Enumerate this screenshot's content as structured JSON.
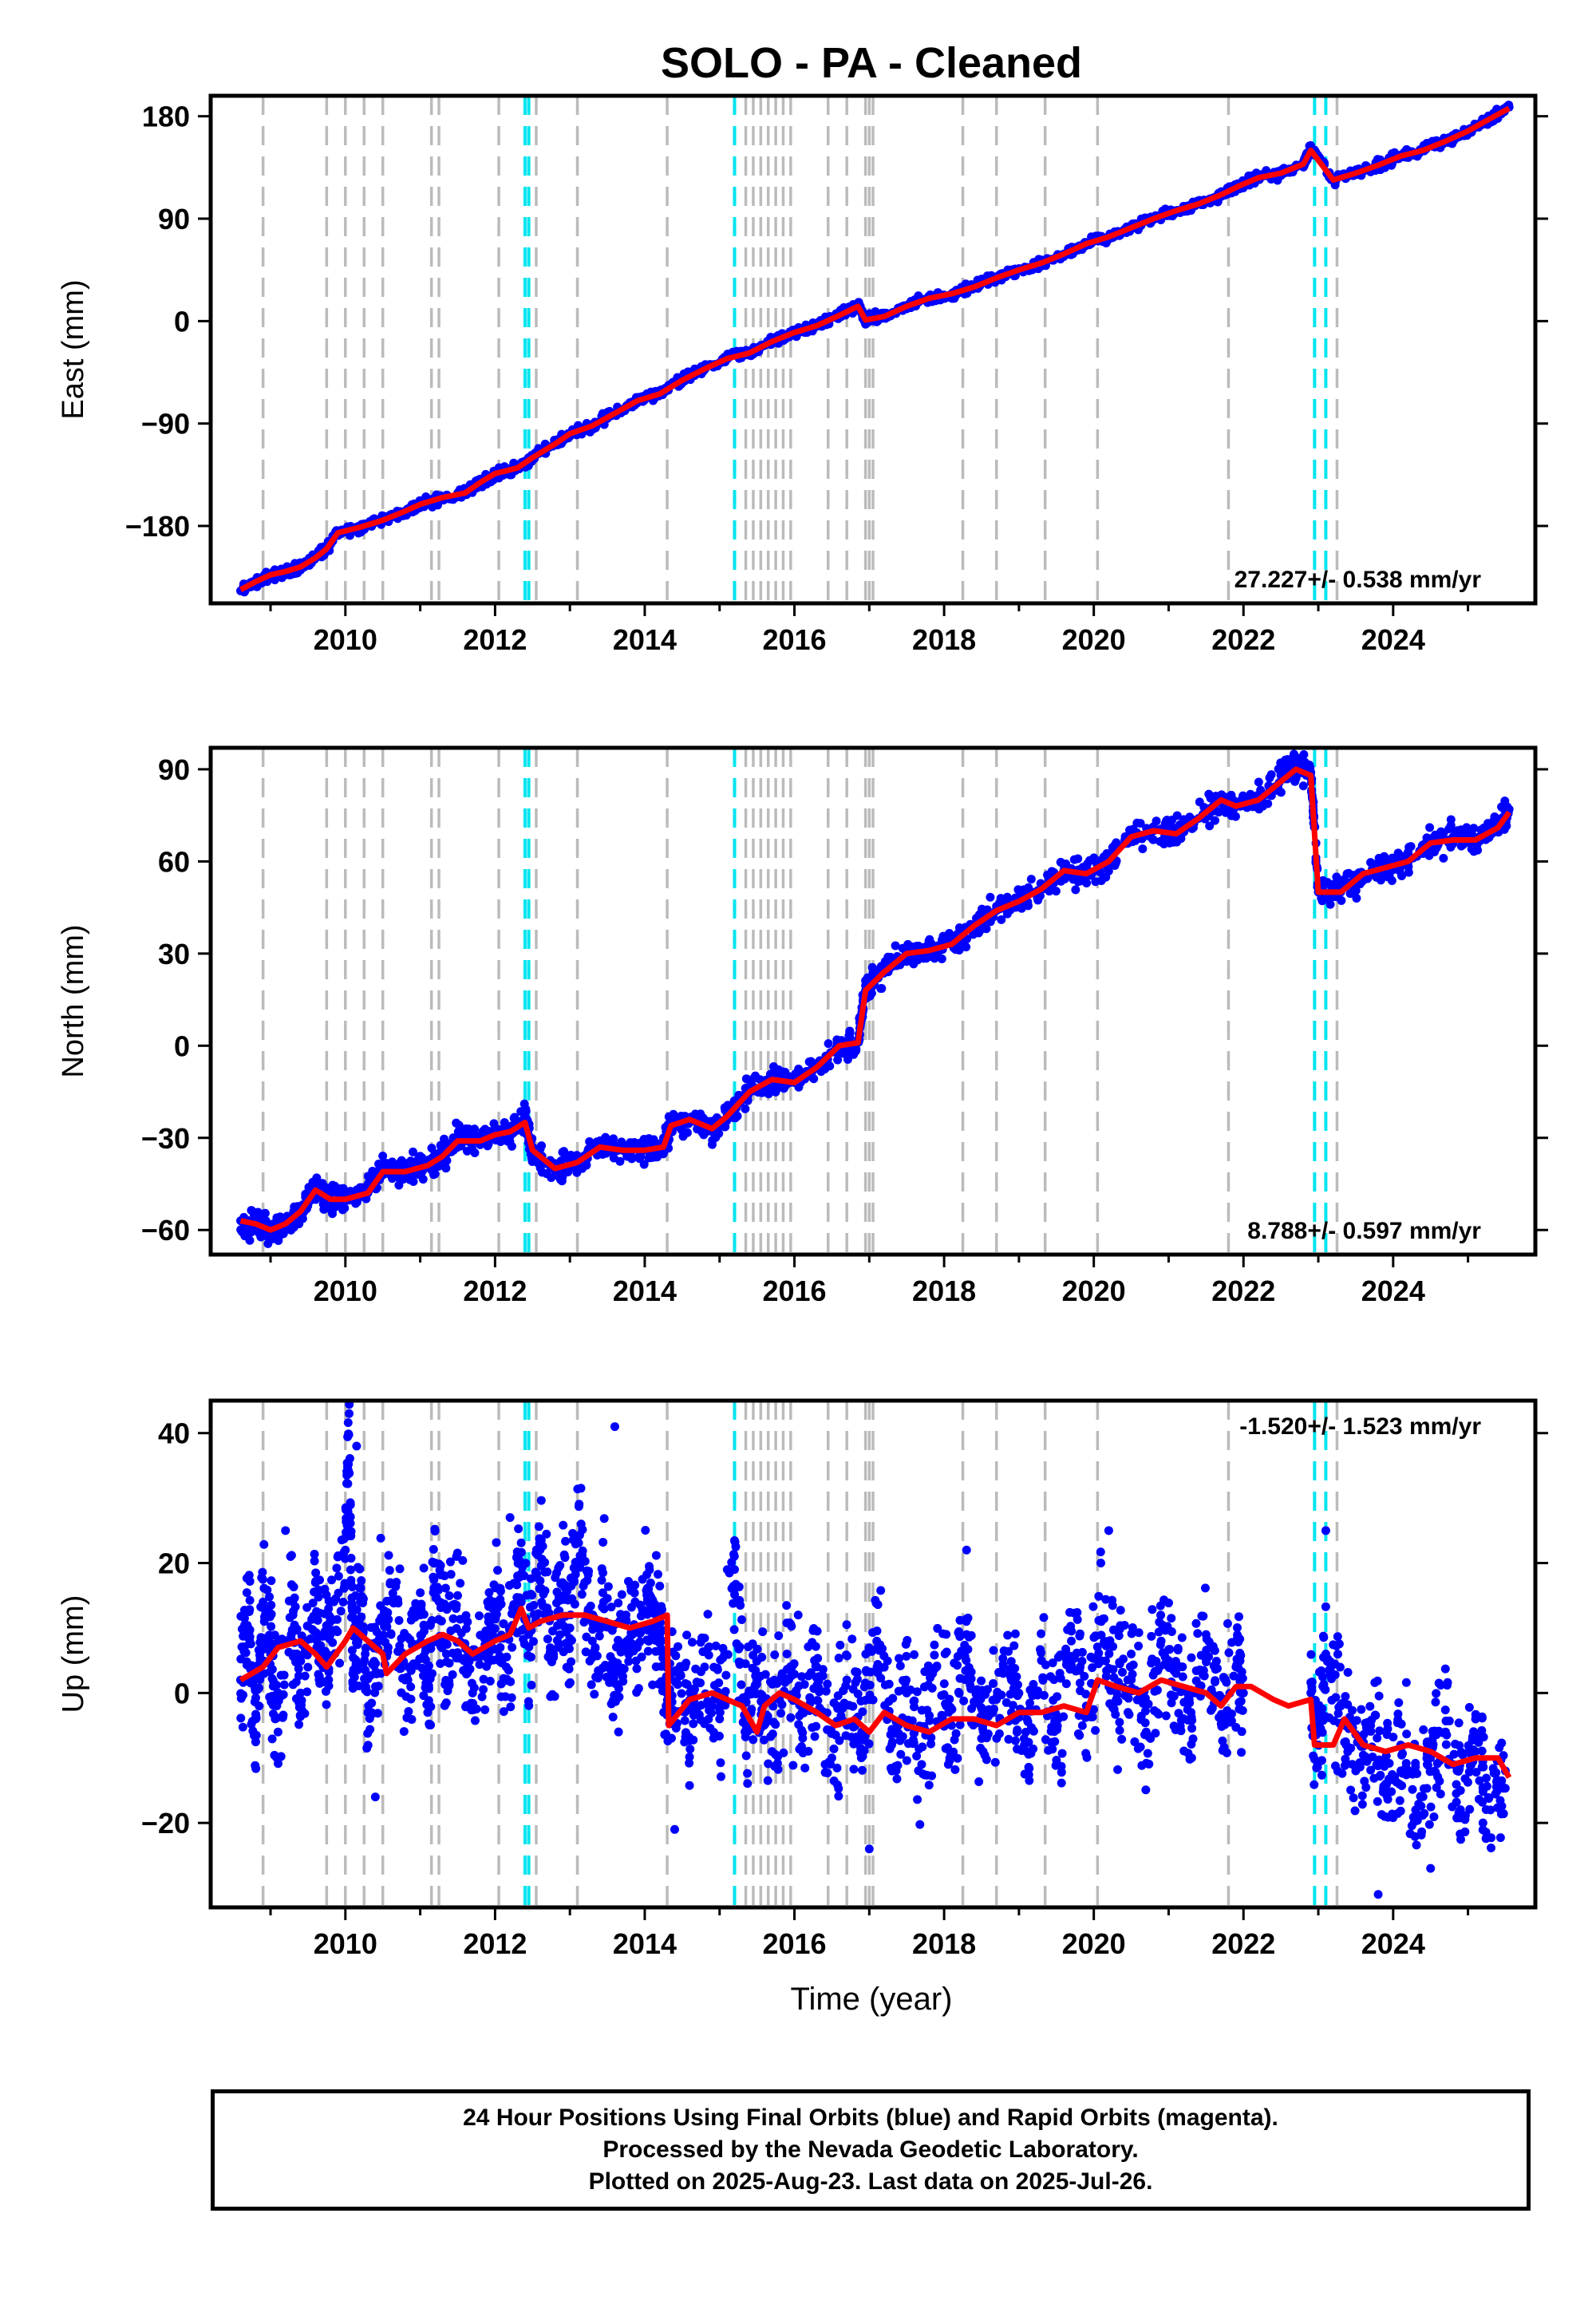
{
  "title": "SOLO  - PA - Cleaned",
  "x_axis_label": "Time (year)",
  "x_ticks": [
    "2010",
    "2012",
    "2014",
    "2016",
    "2018",
    "2020",
    "2022",
    "2024"
  ],
  "colors": {
    "points": "#0000ff",
    "model": "#ff0000",
    "event_gray": "#bbbbbb",
    "event_cyan": "#00e5ee"
  },
  "events": {
    "gray": [
      2008.9,
      2009.75,
      2010.0,
      2010.25,
      2010.5,
      2011.15,
      2011.25,
      2012.05,
      2012.55,
      2013.1,
      2014.3,
      2015.35,
      2015.45,
      2015.55,
      2015.65,
      2015.75,
      2015.85,
      2015.95,
      2016.45,
      2016.7,
      2016.95,
      2017.0,
      2017.05,
      2018.25,
      2018.7,
      2019.35,
      2020.05,
      2021.8,
      2023.25
    ],
    "cyan": [
      2012.4,
      2012.45,
      2015.2,
      2022.95,
      2023.1
    ]
  },
  "info_lines": [
    "24 Hour Positions Using Final Orbits (blue) and Rapid Orbits (magenta).",
    "Processed by the Nevada Geodetic Laboratory.",
    "Plotted on 2025-Aug-23. Last data on 2025-Jul-26."
  ],
  "chart_data": [
    {
      "type": "scatter",
      "ylabel": "East (mm)",
      "rate_label": "27.227+/- 0.538 mm/yr",
      "yticks": [
        -180,
        -90,
        0,
        90,
        180
      ],
      "xlim": [
        2008.2,
        2025.9
      ],
      "ylim": [
        -248,
        198
      ],
      "grid": false,
      "series": [
        {
          "marker": "points",
          "x": [
            2008.6,
            2008.8,
            2009.0,
            2009.2,
            2009.4,
            2009.6,
            2009.75,
            2009.9,
            2010.2,
            2010.5,
            2010.8,
            2011.0,
            2011.3,
            2011.6,
            2011.8,
            2012.0,
            2012.3,
            2012.5,
            2012.8,
            2013.0,
            2013.3,
            2013.6,
            2013.9,
            2014.2,
            2014.5,
            2014.8,
            2015.1,
            2015.4,
            2015.7,
            2016.0,
            2016.3,
            2016.6,
            2016.85,
            2016.95,
            2017.2,
            2017.5,
            2017.8,
            2018.1,
            2018.4,
            2018.7,
            2019.0,
            2019.3,
            2019.6,
            2019.9,
            2020.2,
            2020.5,
            2020.8,
            2021.1,
            2021.4,
            2021.7,
            2021.95,
            2022.2,
            2022.5,
            2022.8,
            2022.9,
            2023.2,
            2023.5,
            2023.8,
            2024.1,
            2024.4,
            2024.7,
            2025.0,
            2025.3,
            2025.55
          ],
          "y": [
            -237,
            -229,
            -224,
            -220,
            -216,
            -208,
            -200,
            -185,
            -181,
            -175,
            -167,
            -161,
            -155,
            -151,
            -142,
            -134,
            -129,
            -120,
            -108,
            -99,
            -92,
            -81,
            -70,
            -64,
            -52,
            -42,
            -33,
            -28,
            -18,
            -10,
            -4,
            5,
            14,
            1,
            4,
            13,
            20,
            24,
            30,
            38,
            45,
            51,
            59,
            68,
            74,
            82,
            90,
            97,
            103,
            111,
            119,
            126,
            130,
            138,
            153,
            124,
            130,
            137,
            145,
            150,
            158,
            167,
            178,
            188
          ]
        },
        {
          "marker": "model",
          "x": [
            2008.6,
            2008.8,
            2009.0,
            2009.2,
            2009.4,
            2009.6,
            2009.75,
            2009.9,
            2010.2,
            2010.5,
            2010.8,
            2011.0,
            2011.3,
            2011.6,
            2011.8,
            2012.0,
            2012.3,
            2012.5,
            2012.8,
            2013.0,
            2013.3,
            2013.6,
            2013.9,
            2014.2,
            2014.5,
            2014.8,
            2015.1,
            2015.4,
            2015.7,
            2016.0,
            2016.3,
            2016.6,
            2016.85,
            2016.95,
            2017.2,
            2017.5,
            2017.8,
            2018.1,
            2018.4,
            2018.7,
            2019.0,
            2019.3,
            2019.6,
            2019.9,
            2020.2,
            2020.5,
            2020.8,
            2021.1,
            2021.4,
            2021.7,
            2021.95,
            2022.2,
            2022.5,
            2022.8,
            2022.9,
            2023.2,
            2023.5,
            2023.8,
            2024.1,
            2024.4,
            2024.7,
            2025.0,
            2025.3,
            2025.55
          ],
          "y": [
            -236,
            -229,
            -223,
            -220,
            -216,
            -208,
            -200,
            -186,
            -181,
            -175,
            -167,
            -161,
            -155,
            -151,
            -142,
            -134,
            -129,
            -120,
            -108,
            -99,
            -92,
            -81,
            -70,
            -64,
            -52,
            -42,
            -33,
            -28,
            -18,
            -10,
            -4,
            5,
            13,
            1,
            4,
            13,
            20,
            24,
            30,
            38,
            45,
            51,
            59,
            68,
            74,
            82,
            90,
            97,
            103,
            111,
            119,
            126,
            130,
            138,
            150,
            124,
            130,
            137,
            145,
            150,
            158,
            167,
            178,
            187
          ]
        }
      ]
    },
    {
      "type": "scatter",
      "ylabel": "North (mm)",
      "rate_label": "8.788+/- 0.597 mm/yr",
      "yticks": [
        -60,
        -30,
        0,
        30,
        60,
        90
      ],
      "xlim": [
        2008.2,
        2025.9
      ],
      "ylim": [
        -68,
        97
      ],
      "grid": false,
      "series": [
        {
          "marker": "points",
          "x": [
            2008.6,
            2008.8,
            2009.0,
            2009.2,
            2009.4,
            2009.6,
            2009.8,
            2010.0,
            2010.3,
            2010.5,
            2010.8,
            2011.1,
            2011.3,
            2011.5,
            2011.8,
            2012.0,
            2012.2,
            2012.4,
            2012.5,
            2012.8,
            2013.1,
            2013.4,
            2013.7,
            2014.0,
            2014.25,
            2014.35,
            2014.6,
            2014.9,
            2015.1,
            2015.4,
            2015.7,
            2016.0,
            2016.3,
            2016.6,
            2016.85,
            2016.95,
            2017.2,
            2017.5,
            2017.8,
            2018.1,
            2018.4,
            2018.7,
            2019.0,
            2019.3,
            2019.6,
            2019.9,
            2020.2,
            2020.5,
            2020.8,
            2021.1,
            2021.4,
            2021.7,
            2021.9,
            2022.2,
            2022.5,
            2022.7,
            2022.9,
            2023.0,
            2023.3,
            2023.6,
            2023.9,
            2024.2,
            2024.5,
            2024.8,
            2025.1,
            2025.4,
            2025.55
          ],
          "y": [
            -57,
            -58,
            -60,
            -58,
            -54,
            -46,
            -50,
            -50,
            -48,
            -40,
            -41,
            -39,
            -36,
            -30,
            -31,
            -29,
            -28,
            -24,
            -34,
            -40,
            -38,
            -33,
            -34,
            -34,
            -33,
            -25,
            -24,
            -28,
            -23,
            -15,
            -11,
            -12,
            -7,
            0,
            2,
            18,
            24,
            30,
            31,
            33,
            39,
            44,
            47,
            51,
            57,
            56,
            60,
            68,
            70,
            69,
            74,
            80,
            78,
            80,
            88,
            91,
            89,
            50,
            50,
            56,
            58,
            60,
            66,
            68,
            67,
            72,
            77
          ]
        },
        {
          "marker": "model",
          "x": [
            2008.6,
            2008.8,
            2009.0,
            2009.2,
            2009.4,
            2009.6,
            2009.8,
            2010.0,
            2010.3,
            2010.5,
            2010.8,
            2011.1,
            2011.3,
            2011.5,
            2011.8,
            2012.0,
            2012.2,
            2012.4,
            2012.5,
            2012.8,
            2013.1,
            2013.4,
            2013.7,
            2014.0,
            2014.25,
            2014.35,
            2014.6,
            2014.9,
            2015.1,
            2015.4,
            2015.7,
            2016.0,
            2016.3,
            2016.6,
            2016.85,
            2016.95,
            2017.2,
            2017.5,
            2017.8,
            2018.1,
            2018.4,
            2018.7,
            2019.0,
            2019.3,
            2019.6,
            2019.9,
            2020.2,
            2020.5,
            2020.8,
            2021.1,
            2021.4,
            2021.7,
            2021.9,
            2022.2,
            2022.5,
            2022.7,
            2022.9,
            2023.0,
            2023.3,
            2023.6,
            2023.9,
            2024.2,
            2024.5,
            2024.8,
            2025.1,
            2025.4,
            2025.55
          ],
          "y": [
            -57,
            -58,
            -60,
            -58,
            -54,
            -47,
            -50,
            -50,
            -48,
            -41,
            -41,
            -39,
            -36,
            -31,
            -31,
            -29,
            -28,
            -25,
            -34,
            -40,
            -38,
            -33,
            -34,
            -34,
            -33,
            -26,
            -24,
            -27,
            -23,
            -15,
            -11,
            -12,
            -7,
            0,
            1,
            18,
            24,
            30,
            31,
            33,
            39,
            44,
            47,
            51,
            57,
            56,
            60,
            68,
            70,
            69,
            74,
            80,
            78,
            80,
            86,
            90,
            88,
            50,
            50,
            56,
            58,
            60,
            66,
            67,
            67,
            71,
            76
          ]
        }
      ]
    },
    {
      "type": "scatter",
      "ylabel": "Up (mm)",
      "rate_label": "-1.520+/- 1.523 mm/yr",
      "yticks": [
        -20,
        0,
        20,
        40
      ],
      "xlim": [
        2008.2,
        2025.9
      ],
      "ylim": [
        -33,
        45
      ],
      "grid": false,
      "series": [
        {
          "marker": "points",
          "x": [
            2008.6,
            2008.7,
            2008.8,
            2008.9,
            2009.0,
            2009.1,
            2009.3,
            2009.4,
            2009.6,
            2009.7,
            2009.8,
            2010.0,
            2010.05,
            2010.1,
            2010.2,
            2010.3,
            2010.45,
            2010.6,
            2010.8,
            2011.0,
            2011.1,
            2011.2,
            2011.35,
            2011.5,
            2011.7,
            2011.9,
            2012.0,
            2012.15,
            2012.3,
            2012.45,
            2012.6,
            2012.75,
            2012.9,
            2013.0,
            2013.15,
            2013.3,
            2013.45,
            2013.6,
            2013.75,
            2013.9,
            2014.05,
            2014.2,
            2014.3,
            2014.45,
            2014.6,
            2014.8,
            2015.0,
            2015.2,
            2015.35,
            2015.5,
            2015.7,
            2015.9,
            2016.1,
            2016.3,
            2016.5,
            2016.7,
            2016.9,
            2017.1,
            2017.3,
            2017.5,
            2017.7,
            2017.9,
            2018.1,
            2018.3,
            2018.5,
            2018.7,
            2018.9,
            2019.1,
            2019.3,
            2019.5,
            2019.7,
            2019.9,
            2020.1,
            2020.3,
            2020.5,
            2020.7,
            2020.9,
            2021.1,
            2021.3,
            2021.5,
            2021.7,
            2021.9,
            2022.0,
            2022.9,
            2023.0,
            2023.1,
            2023.3,
            2023.5,
            2023.7,
            2023.9,
            2024.1,
            2024.3,
            2024.5,
            2024.7,
            2024.9,
            2025.1,
            2025.3,
            2025.5,
            2009.2,
            2010.15,
            2012.2,
            2013.6,
            2016.05,
            2018.3,
            2020.2,
            2023.1,
            2023.8,
            2010.4,
            2014.4,
            2017.0,
            2024.5,
            2025.2
          ],
          "y": [
            2,
            10,
            -4,
            14,
            6,
            -6,
            12,
            0,
            17,
            4,
            9,
            22,
            43,
            3,
            14,
            -3,
            8,
            17,
            2,
            12,
            -3,
            20,
            6,
            15,
            0,
            9,
            14,
            4,
            18,
            9,
            22,
            5,
            17,
            10,
            26,
            8,
            14,
            3,
            12,
            7,
            16,
            9,
            -3,
            3,
            -7,
            4,
            -4,
            19,
            -6,
            2,
            -9,
            6,
            -3,
            4,
            -10,
            2,
            -6,
            8,
            -8,
            0,
            -11,
            4,
            -5,
            9,
            -7,
            -1,
            2,
            -9,
            5,
            -4,
            8,
            -2,
            11,
            -1,
            6,
            -6,
            8,
            3,
            -3,
            9,
            -4,
            4,
            0,
            0,
            -8,
            6,
            -2,
            -12,
            -5,
            -14,
            -8,
            -18,
            -10,
            -6,
            -15,
            -9,
            -18,
            -12,
            25,
            38,
            27,
            41,
            12,
            22,
            25,
            25,
            -31,
            -16,
            -21,
            -24,
            -27,
            -20
          ]
        },
        {
          "marker": "model",
          "x": [
            2008.6,
            2008.9,
            2009.1,
            2009.4,
            2009.6,
            2009.75,
            2010.0,
            2010.1,
            2010.3,
            2010.5,
            2010.55,
            2010.8,
            2011.1,
            2011.3,
            2011.5,
            2011.7,
            2012.0,
            2012.2,
            2012.35,
            2012.45,
            2012.6,
            2012.9,
            2013.2,
            2013.5,
            2013.8,
            2014.1,
            2014.3,
            2014.32,
            2014.6,
            2014.9,
            2015.1,
            2015.3,
            2015.5,
            2015.6,
            2015.8,
            2016.0,
            2016.3,
            2016.55,
            2016.8,
            2017.0,
            2017.2,
            2017.5,
            2017.8,
            2018.1,
            2018.4,
            2018.7,
            2019.0,
            2019.3,
            2019.6,
            2019.9,
            2020.05,
            2020.3,
            2020.6,
            2020.9,
            2021.2,
            2021.5,
            2021.7,
            2021.9,
            2022.1,
            2022.4,
            2022.6,
            2022.9,
            2022.95,
            2023.2,
            2023.35,
            2023.6,
            2023.9,
            2024.2,
            2024.5,
            2024.8,
            2025.1,
            2025.4,
            2025.55
          ],
          "y": [
            2,
            4,
            7,
            8,
            6,
            4,
            8,
            10,
            8,
            6,
            3,
            6,
            8,
            9,
            8,
            6,
            8,
            9,
            13,
            10,
            11,
            12,
            12,
            11,
            10,
            11,
            12,
            -5,
            -1,
            0,
            -1,
            -2,
            -6,
            -2,
            0,
            -1,
            -3,
            -5,
            -4,
            -6,
            -3,
            -5,
            -6,
            -4,
            -4,
            -5,
            -3,
            -3,
            -2,
            -3,
            2,
            1,
            0,
            2,
            1,
            0,
            -2,
            1,
            1,
            -1,
            -2,
            -1,
            -8,
            -8,
            -4,
            -8,
            -9,
            -8,
            -9,
            -11,
            -10,
            -10,
            -13
          ]
        }
      ]
    }
  ]
}
